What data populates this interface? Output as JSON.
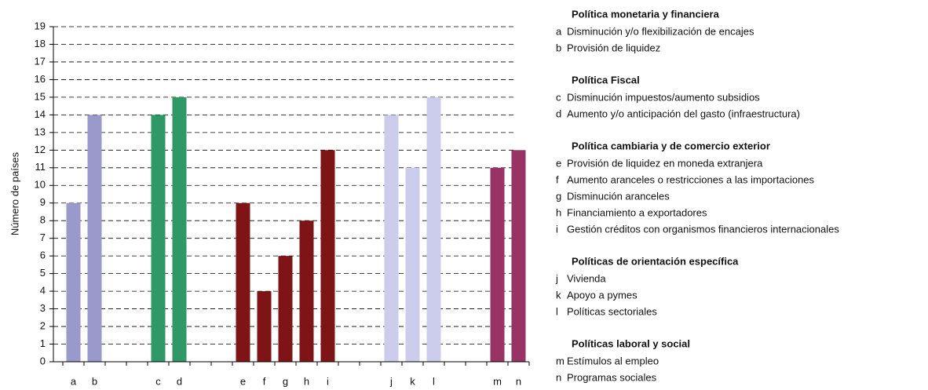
{
  "chart_data": {
    "type": "bar",
    "y_label": "Número de países",
    "categories": [
      "a",
      "b",
      null,
      null,
      "c",
      "d",
      null,
      null,
      "e",
      "f",
      "g",
      "h",
      "i",
      null,
      null,
      "j",
      "k",
      "l",
      null,
      null,
      "m",
      "n"
    ],
    "values": [
      9,
      14,
      null,
      null,
      14,
      15,
      null,
      null,
      9,
      4,
      6,
      8,
      12,
      null,
      null,
      14,
      11,
      15,
      null,
      null,
      11,
      12
    ],
    "colors": [
      "#9999cc",
      "#9999cc",
      null,
      null,
      "#2e9966",
      "#2e9966",
      null,
      null,
      "#7f1416",
      "#7f1416",
      "#7f1416",
      "#7f1416",
      "#7f1416",
      null,
      null,
      "#ccccec",
      "#ccccec",
      "#ccccec",
      null,
      null,
      "#993366",
      "#993366"
    ],
    "ylim": [
      0,
      19
    ],
    "yticks": [
      0,
      1,
      2,
      3,
      4,
      5,
      6,
      7,
      8,
      9,
      10,
      11,
      12,
      13,
      14,
      15,
      16,
      17,
      18,
      19
    ],
    "grid": true,
    "legend_groups": [
      {
        "title": "Política monetaria y financiera",
        "items": [
          {
            "key": "a",
            "label": "Disminución y/o flexibilización de encajes"
          },
          {
            "key": "b",
            "label": "Provisión de liquidez"
          }
        ]
      },
      {
        "title": "Política Fiscal",
        "items": [
          {
            "key": "c",
            "label": "Disminución impuestos/aumento subsidios"
          },
          {
            "key": "d",
            "label": "Aumento y/o anticipación del gasto (infraestructura)"
          }
        ]
      },
      {
        "title": "Política cambiaria y de comercio exterior",
        "items": [
          {
            "key": "e",
            "label": "Provisión de liquidez en moneda extranjera"
          },
          {
            "key": "f",
            "label": "Aumento aranceles o restricciones a las importaciones"
          },
          {
            "key": "g",
            "label": "Disminución aranceles"
          },
          {
            "key": "h",
            "label": "Financiamiento a exportadores"
          },
          {
            "key": "i",
            "label": "Gestión créditos con organismos financieros internacionales"
          }
        ]
      },
      {
        "title": "Políticas de orientación específica",
        "items": [
          {
            "key": "j",
            "label": "Vivienda"
          },
          {
            "key": "k",
            "label": "Apoyo a pymes"
          },
          {
            "key": "l",
            "label": "Políticas sectoriales"
          }
        ]
      },
      {
        "title": "Políticas laboral y social",
        "items": [
          {
            "key": "m",
            "label": "Estímulos al empleo"
          },
          {
            "key": "n",
            "label": "Programas sociales"
          }
        ]
      }
    ]
  }
}
